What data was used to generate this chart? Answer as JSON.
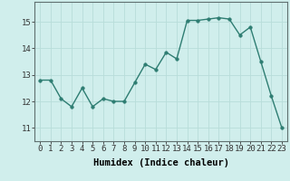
{
  "x": [
    0,
    1,
    2,
    3,
    4,
    5,
    6,
    7,
    8,
    9,
    10,
    11,
    12,
    13,
    14,
    15,
    16,
    17,
    18,
    19,
    20,
    21,
    22,
    23
  ],
  "y": [
    12.8,
    12.8,
    12.1,
    11.8,
    12.5,
    11.8,
    12.1,
    12.0,
    12.0,
    12.7,
    13.4,
    13.2,
    13.85,
    13.6,
    15.05,
    15.05,
    15.1,
    15.15,
    15.1,
    14.5,
    14.8,
    13.5,
    12.2,
    11.0
  ],
  "line_color": "#2e7d72",
  "marker_color": "#2e7d72",
  "bg_color": "#d0eeec",
  "grid_color": "#b8ddd9",
  "xlabel": "Humidex (Indice chaleur)",
  "ylim": [
    10.5,
    15.75
  ],
  "yticks": [
    11,
    12,
    13,
    14,
    15
  ],
  "xticks": [
    0,
    1,
    2,
    3,
    4,
    5,
    6,
    7,
    8,
    9,
    10,
    11,
    12,
    13,
    14,
    15,
    16,
    17,
    18,
    19,
    20,
    21,
    22,
    23
  ],
  "xlabel_fontsize": 7.5,
  "tick_fontsize": 6.5,
  "line_width": 1.0,
  "marker_size": 2.5
}
